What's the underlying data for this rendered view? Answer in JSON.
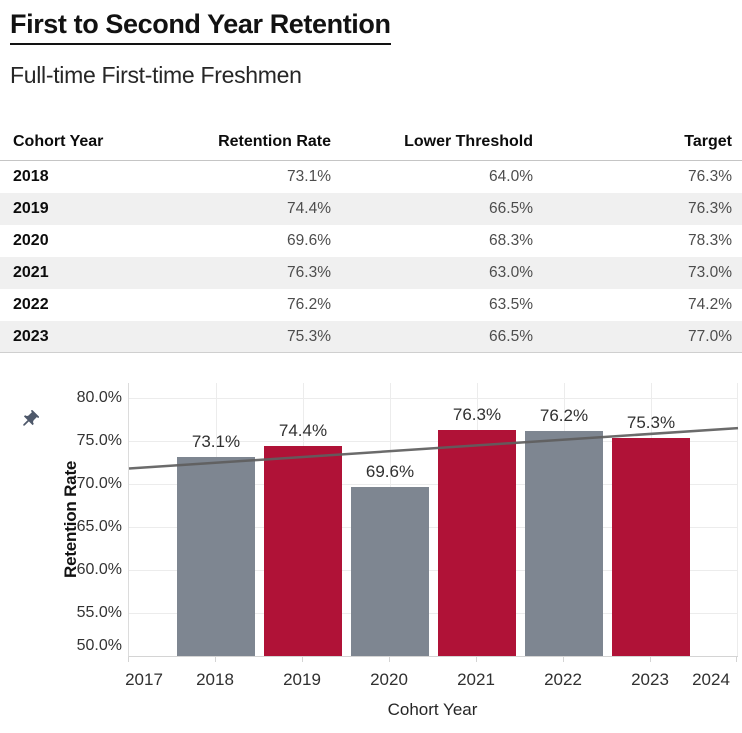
{
  "header": {
    "title": "First to Second Year Retention",
    "subtitle": "Full-time First-time Freshmen"
  },
  "table": {
    "columns": [
      "Cohort Year",
      "Retention Rate",
      "Lower Threshold",
      "Target"
    ],
    "rows": [
      [
        "2018",
        "73.1%",
        "64.0%",
        "76.3%"
      ],
      [
        "2019",
        "74.4%",
        "66.5%",
        "76.3%"
      ],
      [
        "2020",
        "69.6%",
        "68.3%",
        "78.3%"
      ],
      [
        "2021",
        "76.3%",
        "63.0%",
        "73.0%"
      ],
      [
        "2022",
        "76.2%",
        "63.5%",
        "74.2%"
      ],
      [
        "2023",
        "75.3%",
        "66.5%",
        "77.0%"
      ]
    ]
  },
  "chart_data": {
    "type": "bar",
    "title": "",
    "xlabel": "Cohort Year",
    "ylabel": "Retention Rate",
    "categories": [
      2018,
      2019,
      2020,
      2021,
      2022,
      2023
    ],
    "values": [
      73.1,
      74.4,
      69.6,
      76.3,
      76.2,
      75.3
    ],
    "bar_labels": [
      "73.1%",
      "74.4%",
      "69.6%",
      "76.3%",
      "76.2%",
      "75.3%"
    ],
    "bar_color_keys": [
      "gray",
      "crimson",
      "gray",
      "crimson",
      "gray",
      "crimson"
    ],
    "xlim": [
      2017,
      2024
    ],
    "ylim": [
      50,
      81.7
    ],
    "ytick_values": [
      80,
      75,
      70,
      65,
      60,
      55,
      50
    ],
    "ytick_labels": [
      "80.0%",
      "75.0%",
      "70.0%",
      "65.0%",
      "60.0%",
      "55.0%",
      "50.0%"
    ],
    "xtick_labels": [
      "2017",
      "2018",
      "2019",
      "2020",
      "2021",
      "2022",
      "2023",
      "2024"
    ],
    "grid": true,
    "legend": false,
    "trendline": {
      "x": [
        2017,
        2024
      ],
      "y": [
        71.8,
        76.5
      ]
    }
  },
  "icons": {
    "pin": "pushpin-icon"
  },
  "colors": {
    "crimson": "#B01237",
    "gray": "#7E8691",
    "trend": "#5E5E5E",
    "stripe": "#F0F0F0",
    "grid": "#ECECEC",
    "axis": "#D4D4D4",
    "pin": "#4E586A"
  }
}
